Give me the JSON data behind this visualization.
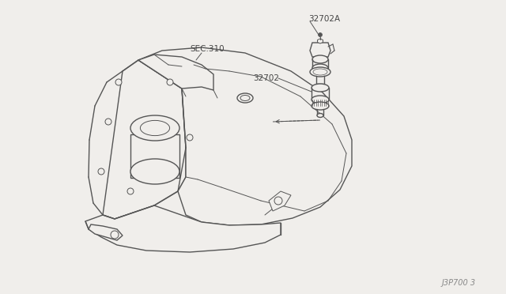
{
  "bg_color": "#f0eeeb",
  "line_color": "#555555",
  "text_color": "#444444",
  "label_32702A": "32702A",
  "label_32702": "32702",
  "label_sec310": "SEC.310",
  "label_watermark": "J3P700 3",
  "lw": 1.0,
  "thin_lw": 0.7,
  "fig_w": 6.4,
  "fig_h": 3.72,
  "dpi": 100
}
